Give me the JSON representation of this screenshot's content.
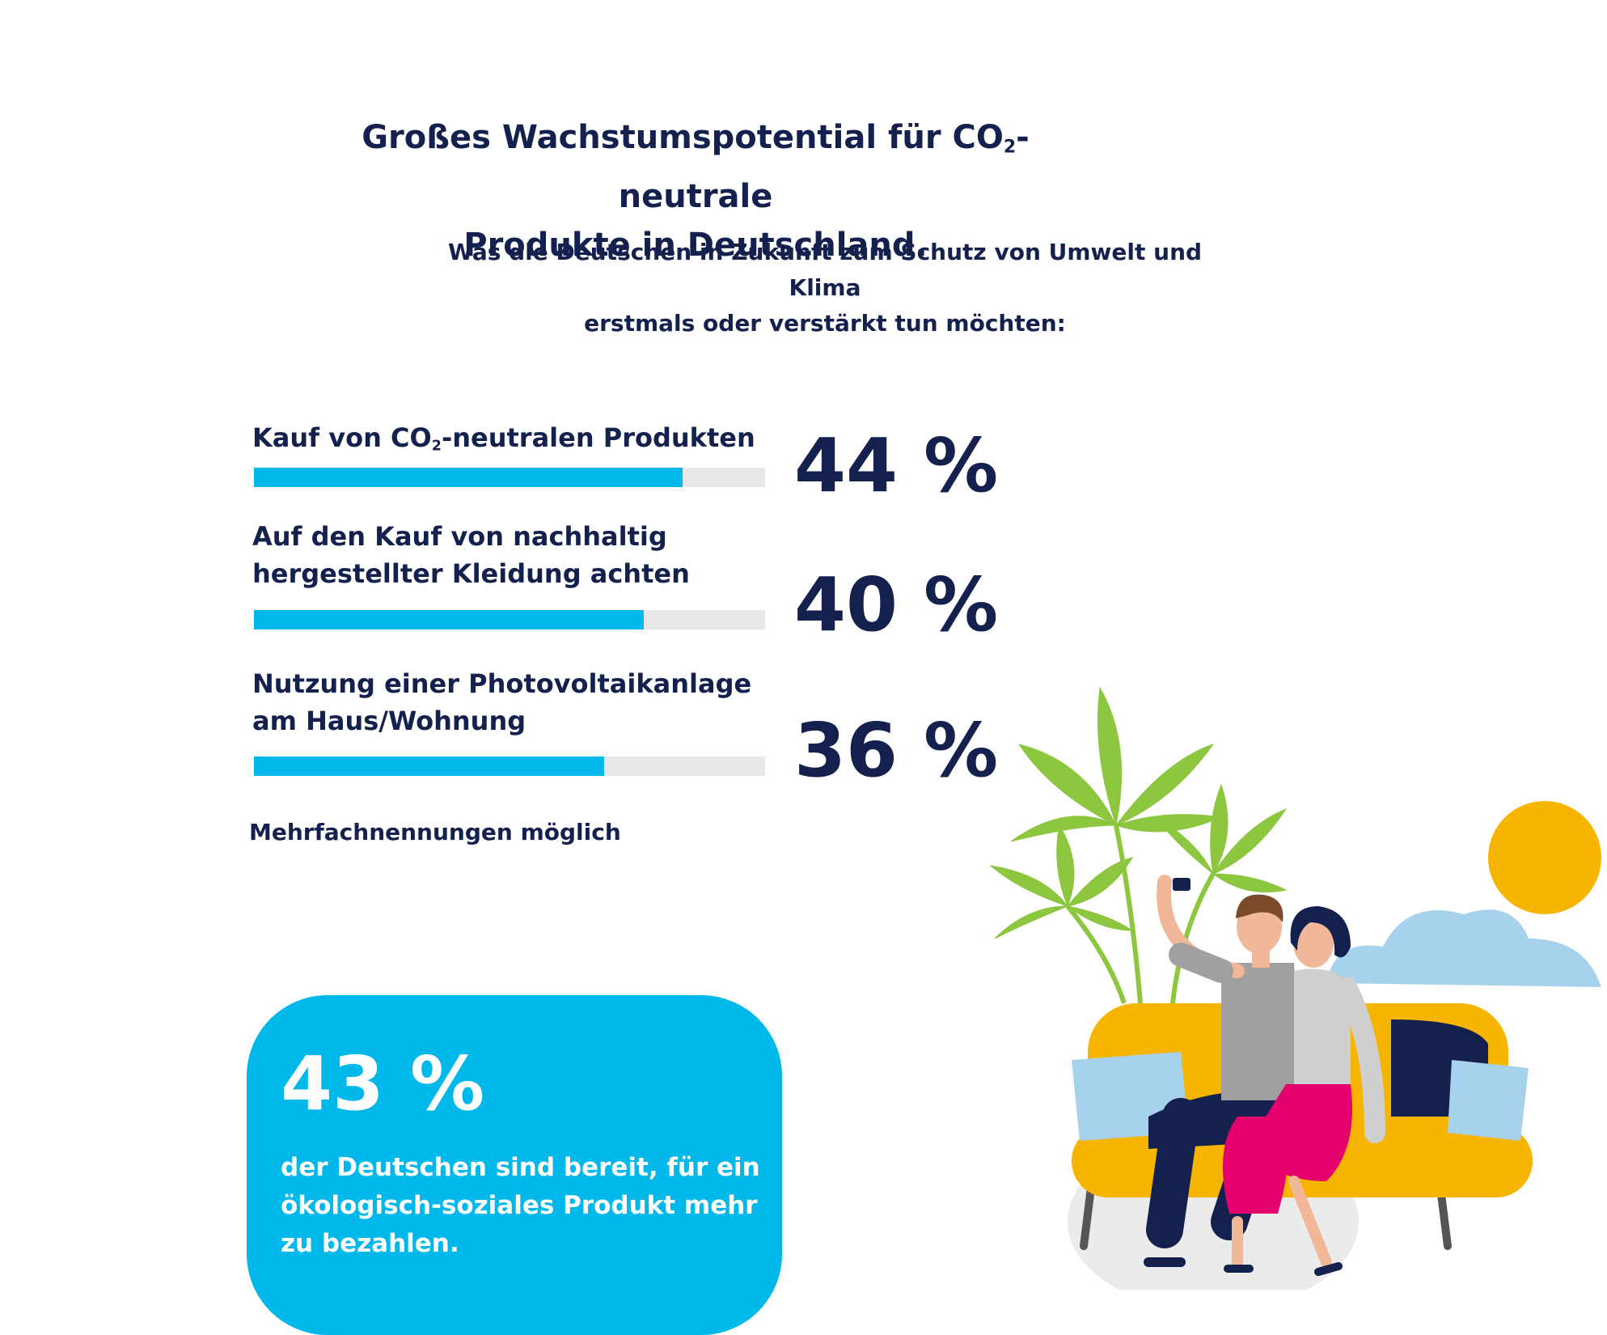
{
  "header": {
    "title_part1": "Großes Wachstumspotential für CO",
    "title_sub": "2",
    "title_part2": "-neutrale",
    "title_line2": "Produkte in Deutschland.",
    "subtitle_line1": "Was die Deutschen in Zukunft zum Schutz von Umwelt und Klima",
    "subtitle_line2": "erstmals oder verstärkt tun möchten:"
  },
  "chart_data": {
    "type": "bar",
    "orientation": "horizontal",
    "categories": [
      "Kauf von CO₂-neutralen Produkten",
      "Auf den Kauf von nachhaltig hergestellter Kleidung achten",
      "Nutzung einer Photovoltaikanlage am Haus/Wohnung"
    ],
    "values": [
      44,
      40,
      36
    ],
    "value_labels": [
      "44 %",
      "40 %",
      "36 %"
    ],
    "xlim": [
      0,
      100
    ],
    "bar_color": "#00b8ea",
    "track_color": "#e8e8ea"
  },
  "items": [
    {
      "label_part1": "Kauf von CO",
      "label_sub": "2",
      "label_part2": "-neutralen Produkten",
      "value_label": "44 %"
    },
    {
      "label_line1": "Auf den Kauf von nachhaltig",
      "label_line2": "hergestellter Kleidung achten",
      "value_label": "40 %"
    },
    {
      "label_line1": "Nutzung einer Photovoltaikanlage",
      "label_line2": "am Haus/Wohnung",
      "value_label": "36 %"
    }
  ],
  "note": "Mehrfachnennungen möglich",
  "callout": {
    "value": "43 %",
    "text": "der Deutschen sind bereit, für ein ökologisch-soziales Produkt mehr zu bezahlen."
  },
  "colors": {
    "navy": "#14204e",
    "accent": "#00b8ea",
    "sofa": "#f7b500",
    "cushion": "#a7d2ee",
    "skirt": "#e4006d",
    "plant": "#8dc63f",
    "sun": "#f7b500",
    "cloud": "#a7d2ee"
  }
}
